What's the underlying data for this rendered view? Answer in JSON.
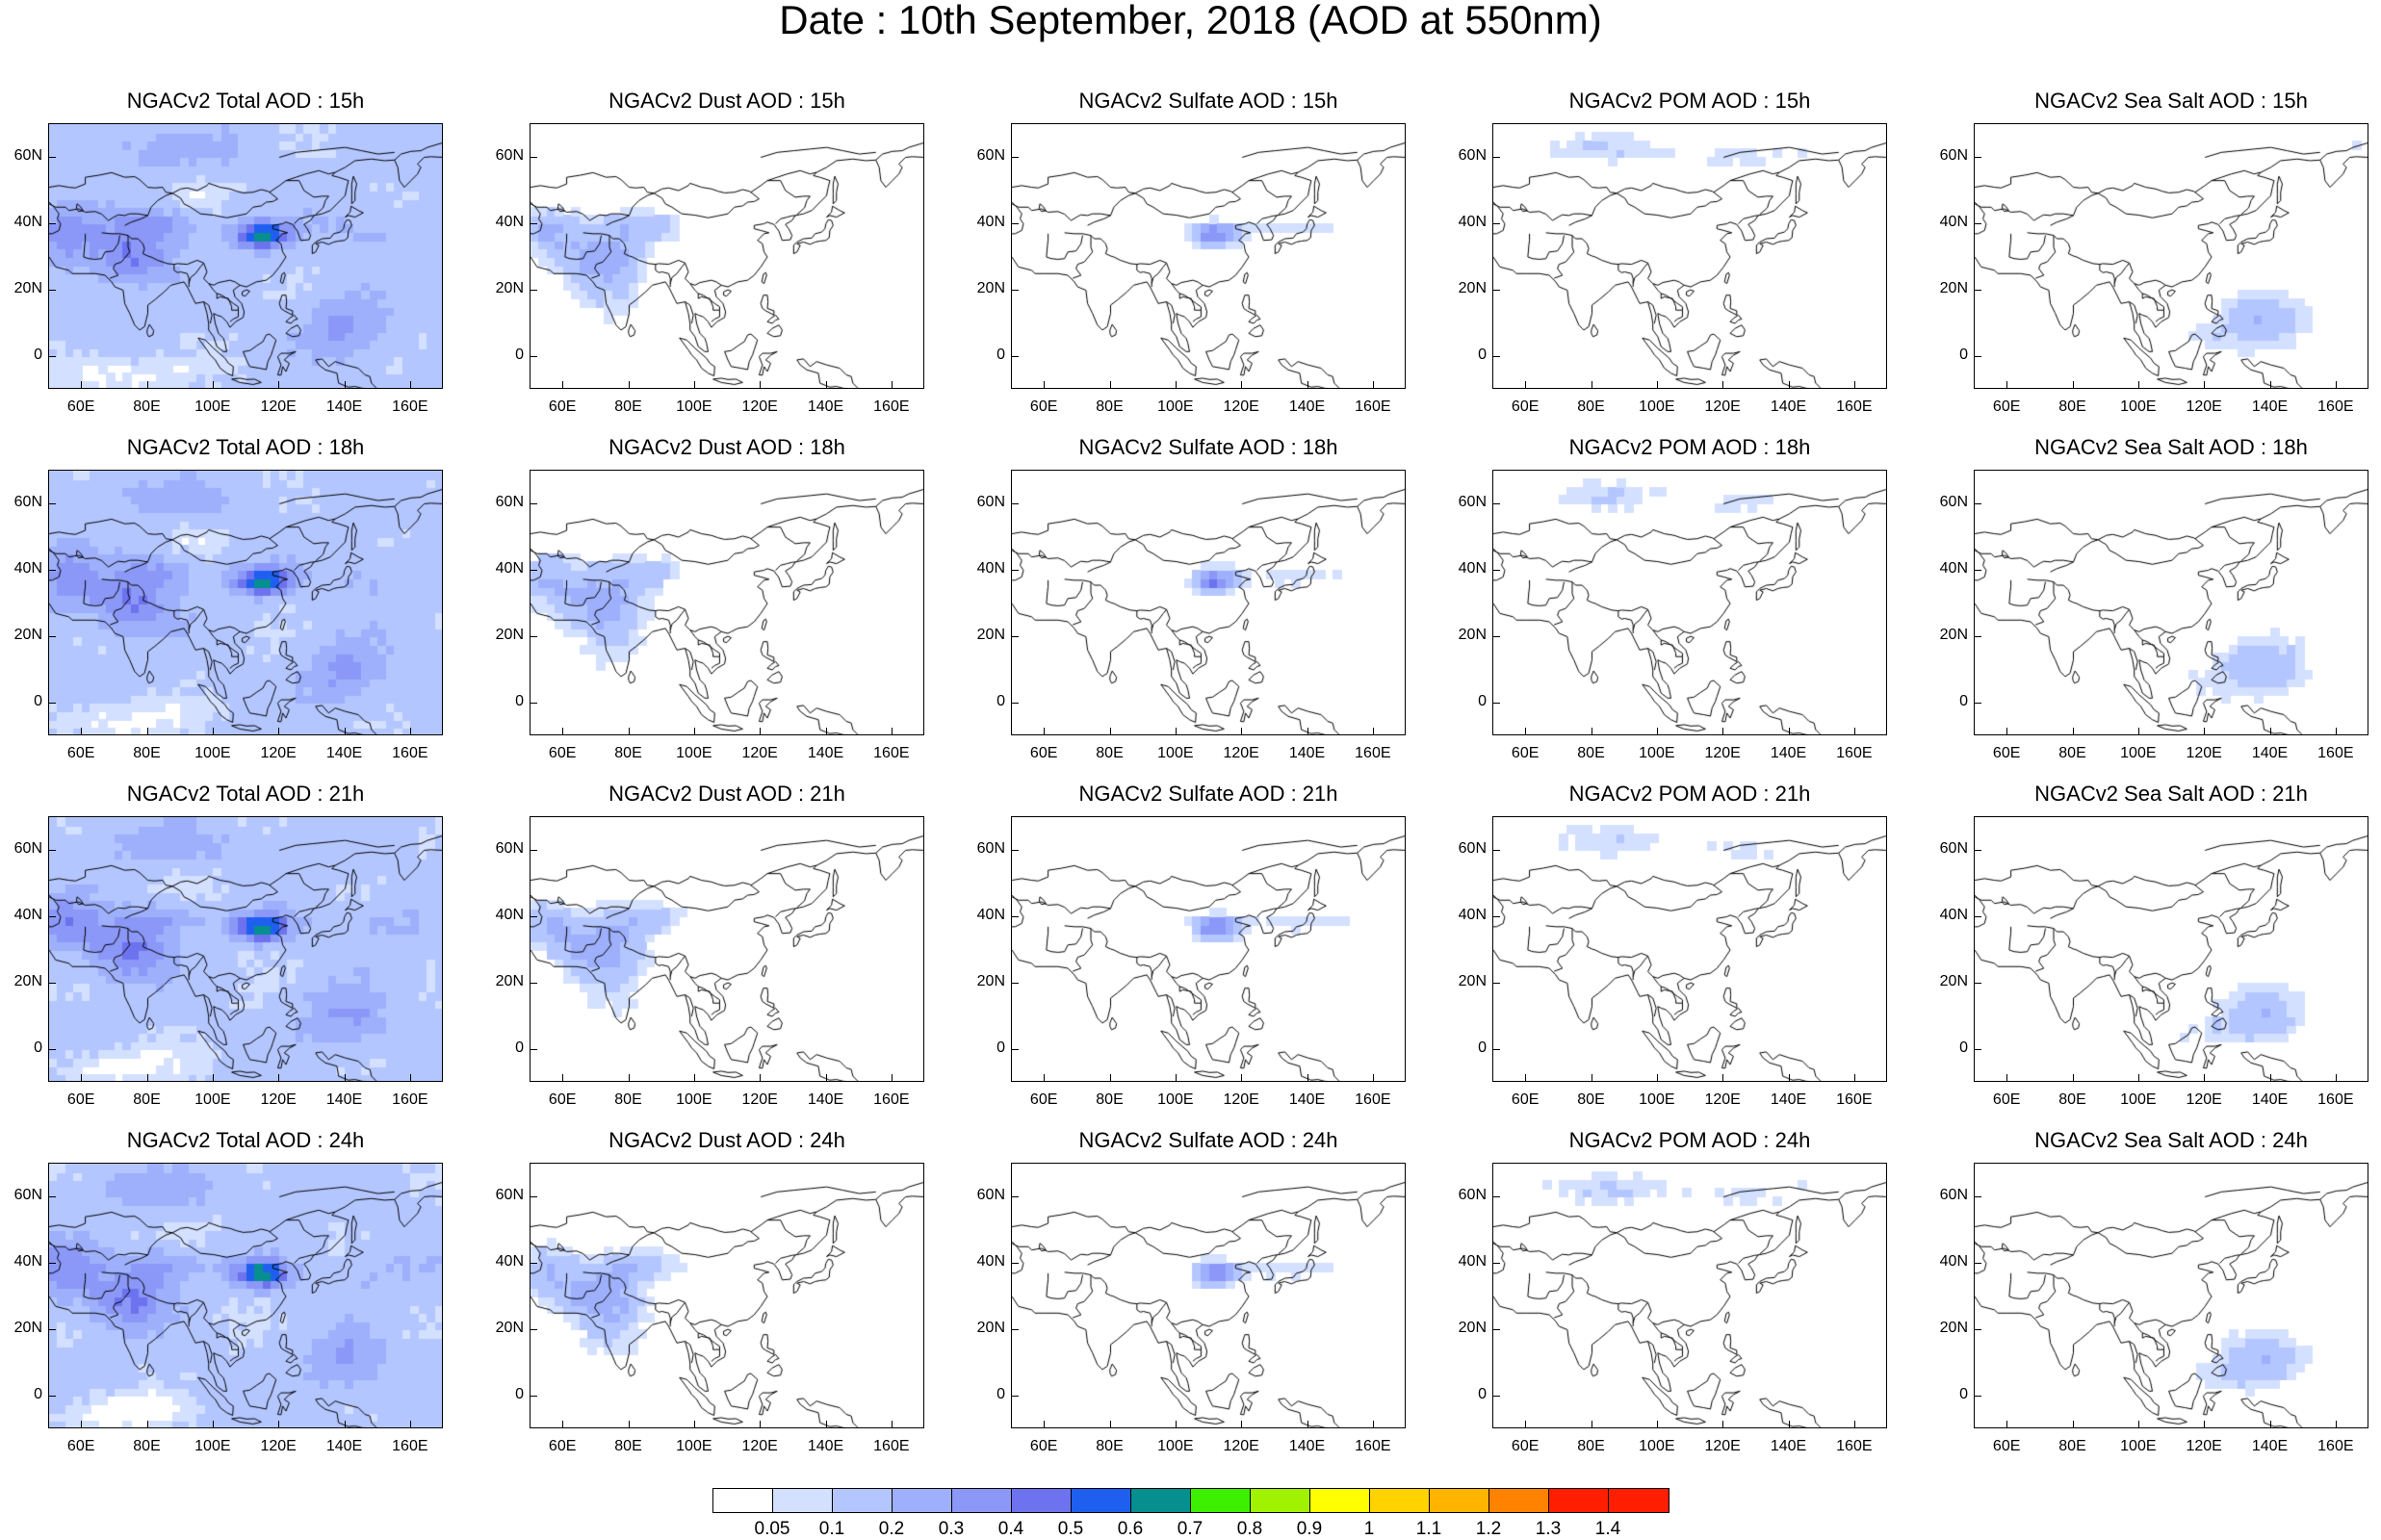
{
  "title": "Date : 10th September, 2018 (AOD at 550nm)",
  "panels": [
    [
      "NGACv2 Total AOD : 15h",
      "NGACv2 Dust AOD : 15h",
      "NGACv2 Sulfate AOD : 15h",
      "NGACv2 POM AOD : 15h",
      "NGACv2 Sea Salt AOD : 15h"
    ],
    [
      "NGACv2 Total AOD : 18h",
      "NGACv2 Dust AOD : 18h",
      "NGACv2 Sulfate AOD : 18h",
      "NGACv2 POM AOD : 18h",
      "NGACv2 Sea Salt AOD : 18h"
    ],
    [
      "NGACv2 Total AOD : 21h",
      "NGACv2 Dust AOD : 21h",
      "NGACv2 Sulfate AOD : 21h",
      "NGACv2 POM AOD : 21h",
      "NGACv2 Sea Salt AOD : 21h"
    ],
    [
      "NGACv2 Total AOD : 24h",
      "NGACv2 Dust AOD : 24h",
      "NGACv2 Sulfate AOD : 24h",
      "NGACv2 POM AOD : 24h",
      "NGACv2 Sea Salt  AOD : 24h"
    ]
  ],
  "lat_ticks": [
    "60N",
    "40N",
    "20N",
    "0"
  ],
  "lon_ticks": [
    "60E",
    "80E",
    "100E",
    "120E",
    "140E",
    "160E"
  ],
  "map_extent": {
    "lon": [
      50,
      170
    ],
    "lat": [
      -10,
      70
    ]
  },
  "colorbar": {
    "labels": [
      "0.05",
      "0.1",
      "0.2",
      "0.3",
      "0.4",
      "0.5",
      "0.6",
      "0.7",
      "0.8",
      "0.9",
      "1",
      "1.1",
      "1.2",
      "1.3",
      "1.4"
    ],
    "colors": [
      "#ffffff",
      "#d4e0ff",
      "#b4c6ff",
      "#9eb0fb",
      "#8b98f7",
      "#6d72ee",
      "#1f5ff0",
      "#068f8f",
      "#3df000",
      "#a1f200",
      "#ffff00",
      "#ffd200",
      "#ffb400",
      "#ff8200",
      "#ff1e00",
      "#ff1e00"
    ]
  }
}
